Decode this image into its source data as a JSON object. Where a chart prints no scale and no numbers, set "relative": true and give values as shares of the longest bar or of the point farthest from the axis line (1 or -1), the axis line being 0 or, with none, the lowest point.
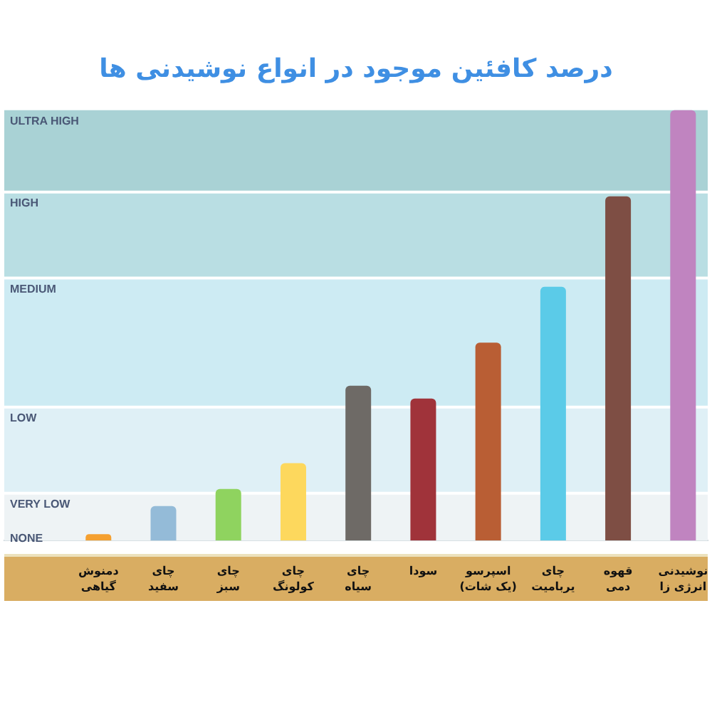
{
  "chart_data": {
    "type": "bar",
    "title": "درصد کافئین موجود در انواع نوشیدنی ها",
    "categories": [
      "دمنوش گیاهی",
      "چای سفید",
      "چای سبز",
      "چای کولونگ",
      "چای سیاه",
      "سودا",
      "اسپرسو (یک شات)",
      "چای یربامیت",
      "قهوه دمی",
      "نوشیدنی انرژی زا"
    ],
    "values": [
      0.015,
      0.08,
      0.12,
      0.18,
      0.36,
      0.33,
      0.46,
      0.59,
      0.8,
      1
    ],
    "colors": [
      "#f5a030",
      "#94bbd8",
      "#8fd35f",
      "#fdd85d",
      "#6e6a66",
      "#a0333a",
      "#b95e34",
      "#5bcbe8",
      "#7e4e44",
      "#c084c0"
    ],
    "relative": true,
    "bands": [
      {
        "axis": "y",
        "from": 0.81,
        "to": 1,
        "label": "ULTRA HIGH",
        "color": "#a9d2d5"
      },
      {
        "axis": "y",
        "from": 0.61,
        "to": 0.81,
        "label": "HIGH",
        "color": "#b9dee3"
      },
      {
        "axis": "y",
        "from": 0.31,
        "to": 0.61,
        "label": "MEDIUM",
        "color": "#cdebf3"
      },
      {
        "axis": "y",
        "from": 0.11,
        "to": 0.31,
        "label": "LOW",
        "color": "#dff0f6"
      },
      {
        "axis": "y",
        "from": 0.03,
        "to": 0.11,
        "label": "VERY LOW",
        "color": "#eef3f5"
      },
      {
        "axis": "y",
        "from": 0,
        "to": 0.03,
        "label": "NONE",
        "color": "#eef3f5"
      }
    ]
  }
}
